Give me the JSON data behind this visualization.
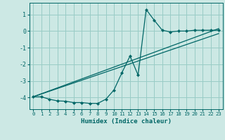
{
  "title": "",
  "xlabel": "Humidex (Indice chaleur)",
  "ylabel": "",
  "bg_color": "#cce8e4",
  "grid_color": "#99ccc6",
  "line_color": "#006666",
  "xlim": [
    -0.5,
    23.5
  ],
  "ylim": [
    -4.7,
    1.7
  ],
  "xticks": [
    0,
    1,
    2,
    3,
    4,
    5,
    6,
    7,
    8,
    9,
    10,
    11,
    12,
    13,
    14,
    15,
    16,
    17,
    18,
    19,
    20,
    21,
    22,
    23
  ],
  "yticks": [
    -4,
    -3,
    -2,
    -1,
    0,
    1
  ],
  "curve_x": [
    0,
    1,
    2,
    3,
    4,
    5,
    6,
    7,
    8,
    9,
    10,
    11,
    12,
    13,
    14,
    15,
    16,
    17,
    18,
    19,
    20,
    21,
    22,
    23
  ],
  "curve_y": [
    -3.95,
    -3.95,
    -4.1,
    -4.2,
    -4.22,
    -4.3,
    -4.3,
    -4.35,
    -4.35,
    -4.1,
    -3.55,
    -2.5,
    -1.5,
    -2.65,
    1.3,
    0.65,
    0.05,
    -0.05,
    0.0,
    0.0,
    0.05,
    0.05,
    0.05,
    0.05
  ],
  "line2_x": [
    0,
    23
  ],
  "line2_y": [
    -3.95,
    0.15
  ],
  "line3_x": [
    0,
    23
  ],
  "line3_y": [
    -3.95,
    -0.15
  ]
}
